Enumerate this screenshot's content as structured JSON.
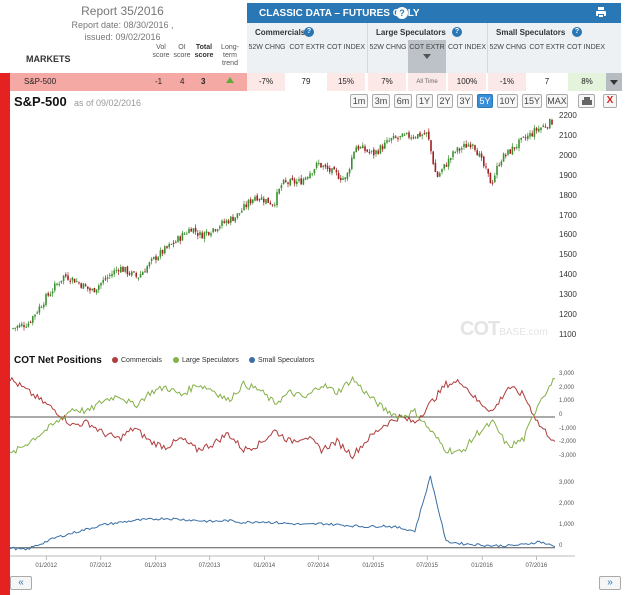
{
  "report": {
    "title": "Report 35/2016",
    "date": "Report date: 08/30/2016 ,",
    "issued": "issued: 09/02/2016"
  },
  "columns": {
    "markets": "MARKETS",
    "vol": "Vol score",
    "oi": "OI score",
    "total": "Total score",
    "trend": "Long-term trend"
  },
  "classic": {
    "title": "CLASSIC DATA – FUTURES ONLY",
    "help": "?",
    "groups": [
      {
        "label": "Commercials",
        "subs": [
          "52W CHNG",
          "COT EXTR",
          "COT INDEX"
        ]
      },
      {
        "label": "Large Speculators",
        "subs": [
          "52W CHNG",
          "COT EXTR",
          "COT INDEX"
        ],
        "selected_sub": 1,
        "selected_note": "All Time"
      },
      {
        "label": "Small Speculators",
        "subs": [
          "52W CHNG",
          "COT EXTR",
          "COT INDEX"
        ]
      }
    ]
  },
  "row": {
    "market": "S&P-500",
    "vol": "-1",
    "oi": "4",
    "total": "3",
    "trend": "up",
    "values": [
      "-7%",
      "79",
      "15%",
      "7%",
      "All Time",
      "100%",
      "-1%",
      "7",
      "8%"
    ],
    "cell_colors": [
      "#fde8e8",
      "#ffffff",
      "#fde8e8",
      "#fde8e8",
      "#fbe9e9",
      "#fde8e8",
      "#fbe9e9",
      "#ffffff",
      "#e3f3dc"
    ]
  },
  "chart": {
    "title": "S&P-500",
    "as_of": "as of 09/02/2016",
    "ranges": [
      "1m",
      "3m",
      "6m",
      "1Y",
      "2Y",
      "3Y",
      "5Y",
      "10Y",
      "15Y",
      "MAX"
    ],
    "active_range": "5Y",
    "close_label": "X",
    "watermark_main": "COT",
    "watermark_sub": "BASE.com"
  },
  "cot": {
    "title": "COT Net Positions",
    "legend": [
      {
        "label": "Commercials",
        "color": "#b03c3c"
      },
      {
        "label": "Large Speculators",
        "color": "#86b04a"
      },
      {
        "label": "Small Speculators",
        "color": "#3a6fa5"
      }
    ]
  },
  "nav": {
    "prev": "«",
    "next": "»"
  },
  "chart_data": [
    {
      "type": "candlestick",
      "title": "S&P-500",
      "y_ticks": [
        "2200",
        "2100",
        "2000",
        "1900",
        "1800",
        "1700",
        "1600",
        "1500",
        "1400",
        "1300",
        "1200",
        "1100"
      ],
      "ylim": [
        1050,
        2230
      ],
      "x_ticks": [
        "01/2012",
        "07/2012",
        "01/2013",
        "07/2013",
        "01/2014",
        "07/2014",
        "01/2015",
        "07/2015",
        "01/2016",
        "07/2016"
      ],
      "x_range": [
        "2011-09",
        "2016-09"
      ],
      "close_path": {
        "x": [
          "2011-09",
          "2011-11",
          "2012-01",
          "2012-03",
          "2012-04",
          "2012-06",
          "2012-07",
          "2012-09",
          "2012-11",
          "2013-01",
          "2013-03",
          "2013-05",
          "2013-06",
          "2013-08",
          "2013-10",
          "2013-12",
          "2014-02",
          "2014-03",
          "2014-05",
          "2014-07",
          "2014-08",
          "2014-10",
          "2014-11",
          "2015-01",
          "2015-03",
          "2015-05",
          "2015-07",
          "2015-08",
          "2015-10",
          "2015-12",
          "2016-02",
          "2016-03",
          "2016-05",
          "2016-07",
          "2016-09"
        ],
        "y": [
          1130,
          1160,
          1290,
          1400,
          1380,
          1320,
          1360,
          1440,
          1390,
          1490,
          1560,
          1640,
          1600,
          1650,
          1700,
          1800,
          1760,
          1860,
          1870,
          1960,
          1930,
          1880,
          2050,
          2010,
          2080,
          2100,
          2110,
          1890,
          2020,
          2070,
          1860,
          1980,
          2060,
          2130,
          2180
        ]
      },
      "color_up": "#3a8f2e",
      "color_down": "#a02020"
    },
    {
      "type": "line",
      "title": "COT Net Positions",
      "y_ticks": [
        "3,000",
        "2,000",
        "1,000",
        "0",
        "-1,000",
        "-2,000",
        "-3,000"
      ],
      "ylim": [
        -3300,
        3300
      ],
      "series": [
        {
          "name": "Commercials",
          "values": [
            2800,
            2000,
            1200,
            400,
            -600,
            -400,
            -1200,
            -1600,
            -800,
            -1800,
            -2200,
            -1600,
            -2400,
            -2000,
            -1200,
            -2400,
            -2000,
            -1000,
            -1800,
            -1400,
            -2400,
            -1800,
            -2800,
            -1600,
            -600,
            0,
            -400,
            1000,
            2400,
            2600,
            1200,
            400,
            2200,
            1600,
            -600,
            -1800
          ]
        },
        {
          "name": "Large Speculators",
          "values": [
            -2800,
            -2000,
            -1200,
            -400,
            600,
            400,
            1200,
            1600,
            800,
            1800,
            2200,
            1600,
            2400,
            2000,
            1200,
            2400,
            2000,
            1000,
            1800,
            1400,
            2400,
            1800,
            2800,
            1600,
            600,
            0,
            400,
            -1000,
            -2400,
            -2600,
            -1200,
            -400,
            -2200,
            -1600,
            1200,
            2800
          ]
        }
      ]
    },
    {
      "type": "line",
      "title": "Small Speculators",
      "y_ticks": [
        "3,000",
        "2,000",
        "1,000",
        "0"
      ],
      "ylim": [
        -200,
        3700
      ],
      "series": [
        {
          "name": "Small Speculators",
          "values": [
            0,
            -100,
            200,
            500,
            700,
            900,
            1100,
            1200,
            1300,
            1350,
            1400,
            1350,
            1300,
            1250,
            1300,
            1200,
            1250,
            1200,
            1150,
            1100,
            1150,
            1100,
            1050,
            1000,
            1050,
            950,
            800,
            3400,
            300,
            200,
            150,
            100,
            100,
            150,
            300,
            50
          ]
        }
      ]
    }
  ]
}
